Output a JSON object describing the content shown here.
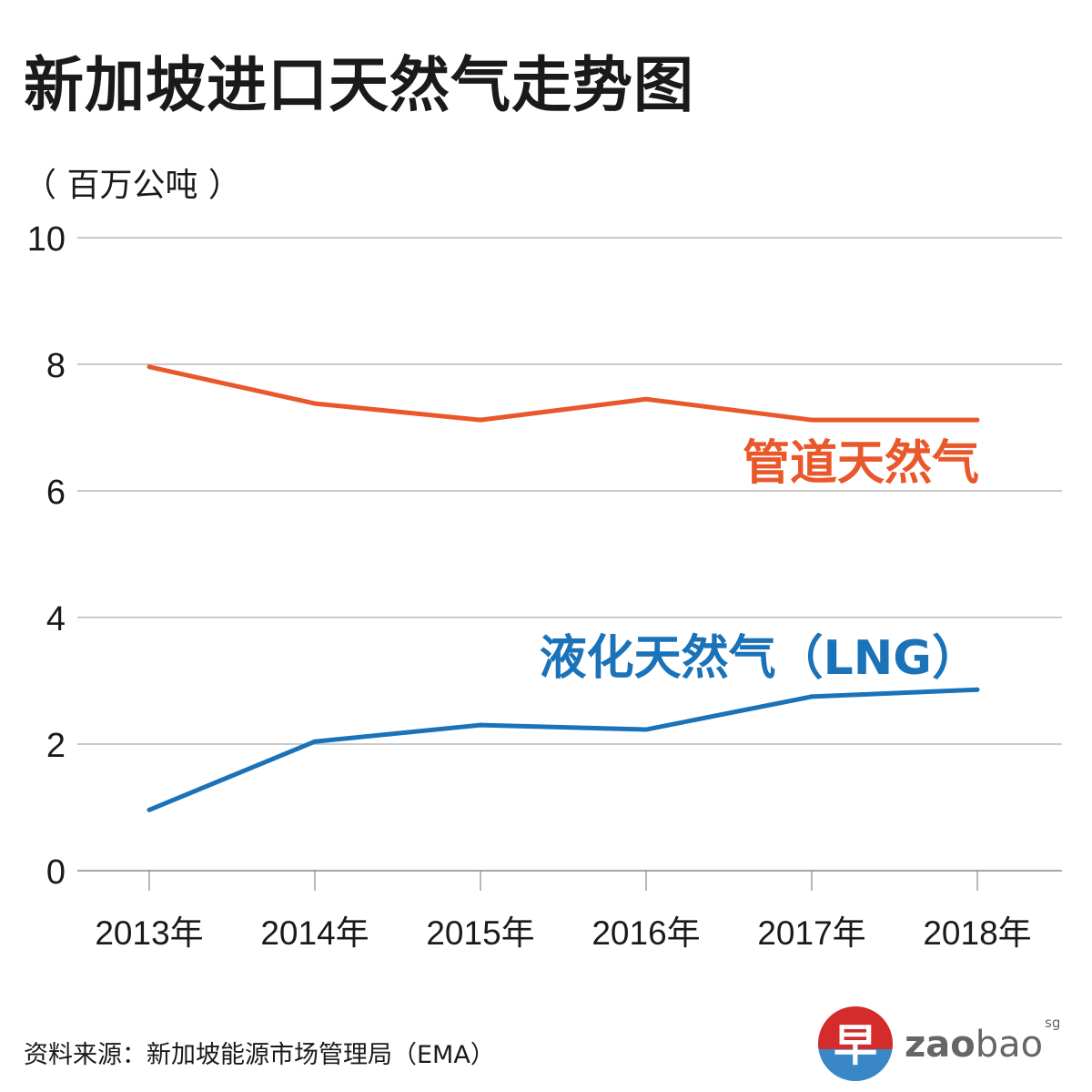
{
  "chart_data": {
    "type": "line",
    "title": "新加坡进口天然气走势图",
    "ylabel": "（ 百万公吨 ）",
    "xlabel": "",
    "categories": [
      "2013年",
      "2014年",
      "2015年",
      "2016年",
      "2017年",
      "2018年"
    ],
    "ylim": [
      0,
      10
    ],
    "yticks": [
      "0",
      "2",
      "4",
      "6",
      "8",
      "10"
    ],
    "grid": true,
    "series": [
      {
        "name": "管道天然气",
        "color": "#e8582a",
        "values": [
          7.96,
          7.38,
          7.12,
          7.45,
          7.12,
          7.12
        ]
      },
      {
        "name": "液化天然气（LNG）",
        "color": "#1a72b8",
        "values": [
          0.96,
          2.04,
          2.3,
          2.23,
          2.75,
          2.86
        ]
      }
    ]
  },
  "source": "资料来源：新加坡能源市场管理局（EMA）",
  "logo": {
    "text": "zaobao",
    "suffix": "sg",
    "glyph": "早"
  }
}
